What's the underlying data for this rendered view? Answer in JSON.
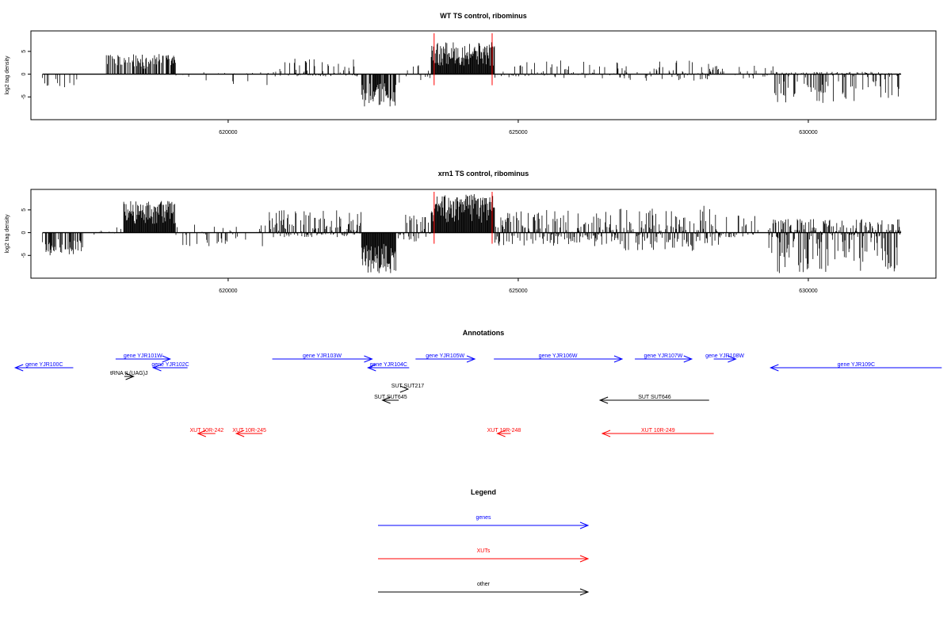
{
  "chart_data": [
    {
      "type": "bar",
      "title": "WT TS control, ribominus",
      "ylabel": "log2 tag density",
      "xlim": [
        616600,
        632200
      ],
      "ylim": [
        -10,
        9.5
      ],
      "yticks": [
        -5,
        0,
        5
      ],
      "xticks": [
        620000,
        625000,
        630000
      ],
      "highlight_lines_x": [
        623550,
        624550
      ],
      "highlight_color": "#ff0000",
      "segments": [
        {
          "from": 616800,
          "to": 617400,
          "min": -3,
          "max": 0,
          "density": 0.25
        },
        {
          "from": 617900,
          "to": 619100,
          "min": 0,
          "max": 4.5,
          "density": 0.6
        },
        {
          "from": 619100,
          "to": 620700,
          "min": -2.5,
          "max": 0.5,
          "density": 0.15
        },
        {
          "from": 620700,
          "to": 622300,
          "min": -0.5,
          "max": 3.5,
          "density": 0.55
        },
        {
          "from": 622300,
          "to": 622900,
          "min": -7.2,
          "max": 0,
          "density": 0.9
        },
        {
          "from": 622900,
          "to": 623500,
          "min": -2,
          "max": 2.5,
          "density": 0.3
        },
        {
          "from": 623500,
          "to": 624600,
          "min": 0,
          "max": 7,
          "density": 1.0
        },
        {
          "from": 624600,
          "to": 626700,
          "min": -1,
          "max": 3,
          "density": 0.35
        },
        {
          "from": 626700,
          "to": 628500,
          "min": -1.5,
          "max": 3,
          "density": 0.35
        },
        {
          "from": 628500,
          "to": 629400,
          "min": -1,
          "max": 2,
          "density": 0.25
        },
        {
          "from": 629400,
          "to": 631600,
          "min": -6.5,
          "max": 0.5,
          "density": 0.7
        }
      ]
    },
    {
      "type": "bar",
      "title": "xrn1 TS control, ribominus",
      "ylabel": "log2 tag density",
      "xlim": [
        616600,
        632200
      ],
      "ylim": [
        -10,
        9.5
      ],
      "yticks": [
        -5,
        0,
        5
      ],
      "xticks": [
        620000,
        625000,
        630000
      ],
      "highlight_lines_x": [
        623550,
        624550
      ],
      "highlight_color": "#ff0000",
      "segments": [
        {
          "from": 616800,
          "to": 617500,
          "min": -5,
          "max": 0,
          "density": 0.6
        },
        {
          "from": 617500,
          "to": 618200,
          "min": -0.5,
          "max": 1.5,
          "density": 0.15
        },
        {
          "from": 618200,
          "to": 619100,
          "min": 0,
          "max": 7,
          "density": 1.0
        },
        {
          "from": 619100,
          "to": 620700,
          "min": -3,
          "max": 2,
          "density": 0.3
        },
        {
          "from": 620700,
          "to": 622300,
          "min": -1,
          "max": 5,
          "density": 0.85
        },
        {
          "from": 622300,
          "to": 622900,
          "min": -9,
          "max": 0,
          "density": 1.0
        },
        {
          "from": 622900,
          "to": 623500,
          "min": -2,
          "max": 4,
          "density": 0.5
        },
        {
          "from": 623500,
          "to": 624600,
          "min": 0,
          "max": 8.5,
          "density": 1.0
        },
        {
          "from": 624600,
          "to": 626700,
          "min": -3,
          "max": 5,
          "density": 0.8
        },
        {
          "from": 626700,
          "to": 628500,
          "min": -4,
          "max": 6,
          "density": 0.8
        },
        {
          "from": 628500,
          "to": 629300,
          "min": -1,
          "max": 4,
          "density": 0.4
        },
        {
          "from": 629300,
          "to": 631600,
          "min": -9,
          "max": 3,
          "density": 0.9
        }
      ]
    }
  ],
  "annotations": {
    "title": "Annotations",
    "xlim": [
      616600,
      632200
    ],
    "features": [
      {
        "label": "gene YJR100C",
        "from": 617330,
        "to": 616330,
        "row": 1,
        "color": "#0000ff"
      },
      {
        "label": "gene YJR101W",
        "from": 618060,
        "to": 619000,
        "row": 0,
        "color": "#0000ff"
      },
      {
        "label": "gene YJR102C",
        "from": 619300,
        "to": 618710,
        "row": 1,
        "color": "#0000ff"
      },
      {
        "label": "gene YJR103W",
        "from": 620760,
        "to": 622480,
        "row": 0,
        "color": "#0000ff"
      },
      {
        "label": "gene YJR104C",
        "from": 623120,
        "to": 622410,
        "row": 1,
        "color": "#0000ff"
      },
      {
        "label": "gene YJR105W",
        "from": 623230,
        "to": 624250,
        "row": 0,
        "color": "#0000ff"
      },
      {
        "label": "gene YJR106W",
        "from": 624580,
        "to": 626790,
        "row": 0,
        "color": "#0000ff"
      },
      {
        "label": "gene YJR107W",
        "from": 627010,
        "to": 627990,
        "row": 0,
        "color": "#0000ff"
      },
      {
        "label": "gene YJR108W",
        "from": 628370,
        "to": 628750,
        "row": 0,
        "color": "#0000ff"
      },
      {
        "label": "gene YJR109C",
        "from": 632300,
        "to": 629350,
        "row": 1,
        "color": "#0000ff"
      },
      {
        "label": "tRNA tL(UAG)J",
        "from": 618210,
        "to": 618370,
        "row": 2,
        "color": "#000000"
      },
      {
        "label": "SUT SUT217",
        "from": 623090,
        "to": 623100,
        "row": 3,
        "color": "#000000"
      },
      {
        "label": "SUT SUT645",
        "from": 622940,
        "to": 622660,
        "row": 4,
        "color": "#000000"
      },
      {
        "label": "SUT SUT646",
        "from": 628290,
        "to": 626410,
        "row": 4,
        "color": "#000000"
      },
      {
        "label": "XUT 10R-242",
        "from": 619780,
        "to": 619480,
        "row": 5,
        "color": "#ff0000"
      },
      {
        "label": "XUT 10R-245",
        "from": 620590,
        "to": 620140,
        "row": 5,
        "color": "#ff0000"
      },
      {
        "label": "XUT 10R-248",
        "from": 624870,
        "to": 624640,
        "row": 5,
        "color": "#ff0000"
      },
      {
        "label": "XUT 10R-249",
        "from": 628370,
        "to": 626450,
        "row": 5,
        "color": "#ff0000"
      }
    ]
  },
  "legend": {
    "title": "Legend",
    "items": [
      {
        "label": "genes",
        "color": "#0000ff"
      },
      {
        "label": "XUTs",
        "color": "#ff0000"
      },
      {
        "label": "other",
        "color": "#000000"
      }
    ]
  }
}
